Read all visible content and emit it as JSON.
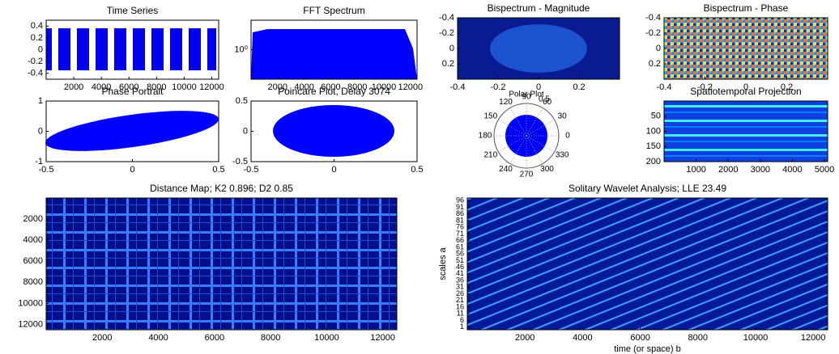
{
  "chart_data": [
    {
      "type": "line",
      "title": "Time Series",
      "xlim": [
        0,
        12500
      ],
      "ylim": [
        -0.5,
        0.5
      ],
      "xticks": [
        2000,
        4000,
        6000,
        8000,
        10000,
        12000
      ],
      "yticks": [
        -0.4,
        -0.2,
        0,
        0.2,
        0.4
      ],
      "color": "#0000ff"
    },
    {
      "type": "line",
      "title": "FFT Spectrum",
      "log_y": true,
      "xlim": [
        0,
        12500
      ],
      "ylim": [
        0.1,
        10
      ],
      "xticks": [
        2000,
        4000,
        6000,
        8000,
        10000,
        12000
      ],
      "yticks": [
        {
          "value": 1,
          "label": "10⁰"
        }
      ],
      "color": "#0000ff"
    },
    {
      "type": "heatmap",
      "title": "Bispectrum - Magnitude",
      "y_reversed": true,
      "xlim": [
        -0.4,
        0.4
      ],
      "ylim": [
        -0.4,
        0.4
      ],
      "xticks": [
        -0.4,
        -0.2,
        0,
        0.2
      ],
      "yticks": [
        -0.4,
        -0.2,
        0,
        0.2
      ]
    },
    {
      "type": "heatmap",
      "title": "Bispectrum - Phase",
      "y_reversed": true,
      "xlim": [
        -0.4,
        0.4
      ],
      "ylim": [
        -0.4,
        0.4
      ],
      "xticks": [
        -0.4,
        -0.2,
        0,
        0.2
      ],
      "yticks": [
        -0.4,
        -0.2,
        0,
        0.2
      ]
    },
    {
      "type": "line",
      "title": "Phase Portrait",
      "xlim": [
        -0.5,
        0.5
      ],
      "ylim": [
        -1,
        1
      ],
      "xticks": [
        -0.5,
        0,
        0.5
      ],
      "yticks": [
        -1,
        0,
        1
      ],
      "color": "#0000ff"
    },
    {
      "type": "line",
      "title": "Poincare Plot, Delay 3074",
      "xlim": [
        -0.5,
        0.5
      ],
      "ylim": [
        -0.5,
        0.5
      ],
      "xticks": [
        -0.5,
        0,
        0.5
      ],
      "yticks": [
        -0.5,
        0,
        0.5
      ],
      "color": "#0000ff"
    },
    {
      "type": "polar",
      "title": "Polar Plot",
      "angle_ticks": [
        90,
        60,
        30,
        0,
        330,
        300,
        270,
        240,
        210,
        180,
        150,
        120
      ],
      "rticks": [
        0.5
      ],
      "color": "#0000ff"
    },
    {
      "type": "heatmap",
      "title": "Spatiotemporal Projection",
      "y_reversed": true,
      "xlim": [
        0,
        5100
      ],
      "ylim": [
        0,
        200
      ],
      "xticks": [
        1000,
        2000,
        3000,
        4000,
        5000
      ],
      "yticks": [
        50,
        100,
        150,
        200
      ]
    },
    {
      "type": "heatmap",
      "title": "Distance Map; K2 0.896; D2 0.85",
      "y_reversed": true,
      "xlim": [
        0,
        12500
      ],
      "ylim": [
        0,
        12500
      ],
      "xticks": [
        2000,
        4000,
        6000,
        8000,
        10000,
        12000
      ],
      "yticks": [
        2000,
        4000,
        6000,
        8000,
        10000,
        12000
      ]
    },
    {
      "type": "heatmap",
      "title": "Solitary Wavelet Analysis; LLE 23.49",
      "xlabel": "time (or space) b",
      "ylabel": "scales a",
      "xlim": [
        0,
        12500
      ],
      "ylim": [
        -1,
        98
      ],
      "xticks": [
        2000,
        4000,
        6000,
        8000,
        10000,
        12000
      ],
      "yticks": [
        1,
        6,
        11,
        16,
        21,
        26,
        31,
        36,
        41,
        46,
        51,
        56,
        61,
        66,
        71,
        76,
        81,
        86,
        91,
        96
      ]
    }
  ]
}
